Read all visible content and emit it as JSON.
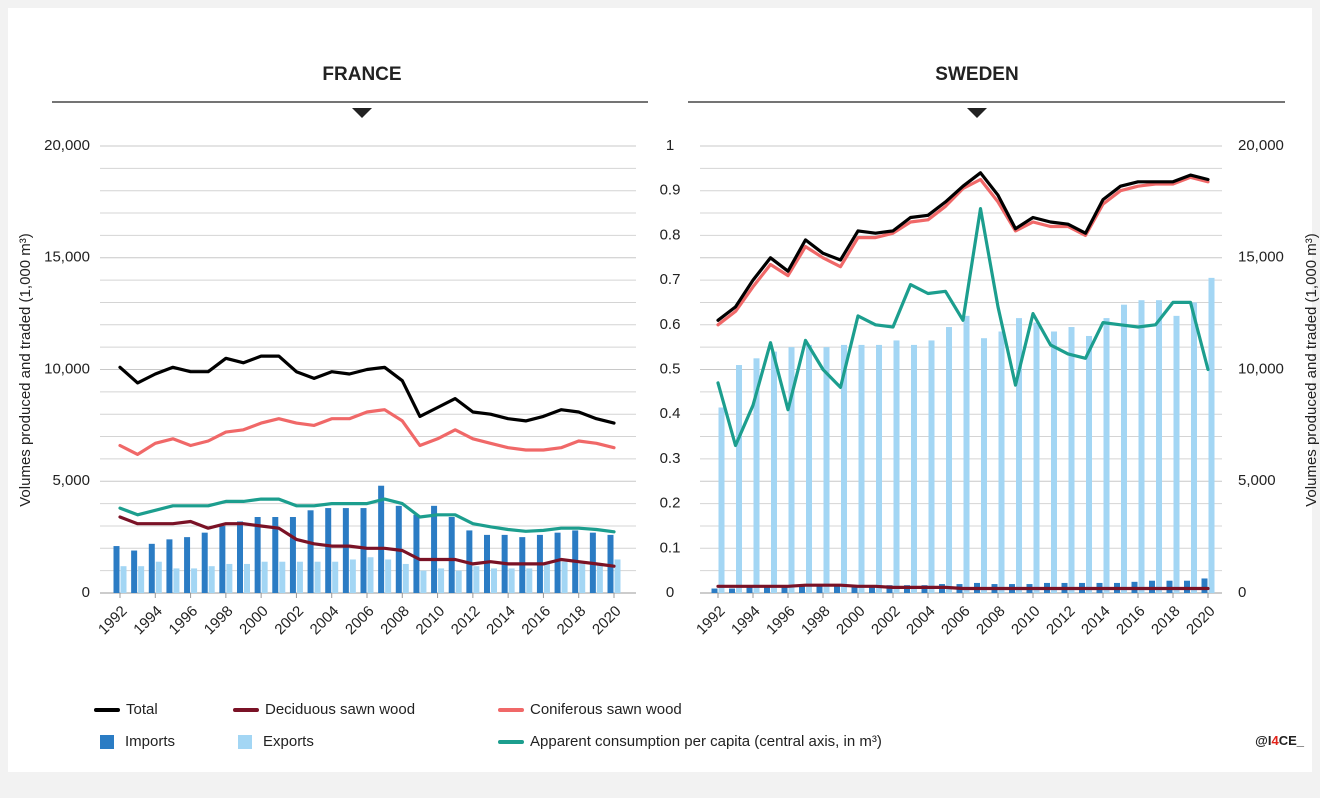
{
  "chart_data": [
    {
      "type": "bar_line",
      "title": "FRANCE",
      "ytitle": "Volumes produced and traded (1,000 m³)",
      "yaxis_side": "left",
      "xlim": [
        1992,
        2020
      ],
      "xticks": [
        1992,
        1994,
        1996,
        1998,
        2000,
        2002,
        2004,
        2006,
        2008,
        2010,
        2012,
        2014,
        2016,
        2018,
        2020
      ],
      "x": [
        1992,
        1993,
        1994,
        1995,
        1996,
        1997,
        1998,
        1999,
        2000,
        2001,
        2002,
        2003,
        2004,
        2005,
        2006,
        2007,
        2008,
        2009,
        2010,
        2011,
        2012,
        2013,
        2014,
        2015,
        2016,
        2017,
        2018,
        2019,
        2020
      ],
      "ylim": [
        0,
        20000
      ],
      "yticks": [
        0,
        {
          "value": 5000,
          "label": "5,000"
        },
        {
          "value": 10000,
          "label": "10,000"
        },
        {
          "value": 15000,
          "label": "15,000"
        },
        {
          "value": 20000,
          "label": "20,000"
        }
      ],
      "grid": true,
      "grid_step": 1000,
      "y2lim": [
        0,
        1
      ],
      "series": [
        {
          "name": "Total",
          "kind": "line",
          "color": "#000000",
          "axis": "y",
          "values": [
            10100,
            9400,
            9800,
            10100,
            9900,
            9900,
            10500,
            10300,
            10600,
            10600,
            9900,
            9600,
            9900,
            9800,
            10000,
            10100,
            9500,
            7900,
            8300,
            8700,
            8100,
            8000,
            7800,
            7700,
            7900,
            8200,
            8100,
            7800,
            7600
          ]
        },
        {
          "name": "Deciduous sawn wood",
          "kind": "line",
          "color": "#7a1226",
          "axis": "y",
          "values": [
            3400,
            3100,
            3100,
            3100,
            3200,
            2900,
            3100,
            3100,
            3000,
            2900,
            2400,
            2200,
            2100,
            2100,
            2000,
            2000,
            1900,
            1500,
            1500,
            1500,
            1300,
            1400,
            1300,
            1300,
            1300,
            1500,
            1400,
            1300,
            1200
          ]
        },
        {
          "name": "Coniferous sawn wood",
          "kind": "line",
          "color": "#f06868",
          "axis": "y",
          "values": [
            6600,
            6200,
            6700,
            6900,
            6600,
            6800,
            7200,
            7300,
            7600,
            7800,
            7600,
            7500,
            7800,
            7800,
            8100,
            8200,
            7700,
            6600,
            6900,
            7300,
            6900,
            6700,
            6500,
            6400,
            6400,
            6500,
            6800,
            6700,
            6500
          ]
        },
        {
          "name": "Imports",
          "kind": "bar",
          "color": "#2b7cc4",
          "axis": "y",
          "values": [
            2100,
            1900,
            2200,
            2400,
            2500,
            2700,
            3000,
            3200,
            3400,
            3400,
            3400,
            3700,
            3800,
            3800,
            3800,
            4800,
            3900,
            3500,
            3900,
            3400,
            2800,
            2600,
            2600,
            2500,
            2600,
            2700,
            2800,
            2700,
            2600
          ]
        },
        {
          "name": "Exports",
          "kind": "bar",
          "color": "#a3d6f4",
          "axis": "y",
          "values": [
            1200,
            1200,
            1400,
            1100,
            1100,
            1200,
            1300,
            1300,
            1400,
            1400,
            1400,
            1400,
            1400,
            1500,
            1600,
            1500,
            1300,
            1000,
            1100,
            1000,
            1200,
            1100,
            1100,
            1100,
            1300,
            1400,
            1400,
            1300,
            1500
          ]
        },
        {
          "name": "Apparent consumption per capita (central axis, in m³)",
          "kind": "line",
          "color": "#1c9e8e",
          "axis": "y2",
          "values": [
            0.19,
            0.175,
            0.185,
            0.195,
            0.195,
            0.195,
            0.205,
            0.205,
            0.21,
            0.21,
            0.195,
            0.195,
            0.2,
            0.2,
            0.2,
            0.21,
            0.2,
            0.17,
            0.175,
            0.175,
            0.155,
            0.148,
            0.142,
            0.138,
            0.14,
            0.145,
            0.145,
            0.142,
            0.137
          ]
        }
      ]
    },
    {
      "type": "bar_line",
      "title": "SWEDEN",
      "ytitle": "Volumes produced and traded (1,000 m³)",
      "yaxis_side": "right",
      "xlim": [
        1992,
        2020
      ],
      "xticks": [
        1992,
        1994,
        1996,
        1998,
        2000,
        2002,
        2004,
        2006,
        2008,
        2010,
        2012,
        2014,
        2016,
        2018,
        2020
      ],
      "x": [
        1992,
        1993,
        1994,
        1995,
        1996,
        1997,
        1998,
        1999,
        2000,
        2001,
        2002,
        2003,
        2004,
        2005,
        2006,
        2007,
        2008,
        2009,
        2010,
        2011,
        2012,
        2013,
        2014,
        2015,
        2016,
        2017,
        2018,
        2019,
        2020
      ],
      "ylim": [
        0,
        20000
      ],
      "yticks": [
        0,
        {
          "value": 5000,
          "label": "5,000"
        },
        {
          "value": 10000,
          "label": "10,000"
        },
        {
          "value": 15000,
          "label": "15,000"
        },
        {
          "value": 20000,
          "label": "20,000"
        }
      ],
      "grid": true,
      "grid_step": 1000,
      "y2lim": [
        0,
        1
      ],
      "y2ticks": [
        0,
        0.1,
        0.2,
        0.3,
        0.4,
        0.5,
        0.6,
        0.7,
        0.8,
        0.9,
        1
      ],
      "series": [
        {
          "name": "Total",
          "kind": "line",
          "color": "#000000",
          "axis": "y",
          "values": [
            12200,
            12800,
            14000,
            15000,
            14400,
            15800,
            15200,
            14900,
            16200,
            16100,
            16200,
            16800,
            16900,
            17500,
            18200,
            18800,
            17800,
            16300,
            16800,
            16600,
            16500,
            16100,
            17600,
            18200,
            18400,
            18400,
            18400,
            18700,
            18500
          ]
        },
        {
          "name": "Deciduous sawn wood",
          "kind": "line",
          "color": "#7a1226",
          "axis": "y",
          "values": [
            300,
            300,
            300,
            300,
            300,
            350,
            350,
            350,
            300,
            300,
            250,
            250,
            250,
            250,
            200,
            200,
            200,
            200,
            200,
            200,
            200,
            200,
            200,
            200,
            200,
            200,
            200,
            200,
            200
          ]
        },
        {
          "name": "Coniferous sawn wood",
          "kind": "line",
          "color": "#f06868",
          "axis": "y",
          "values": [
            12000,
            12600,
            13700,
            14700,
            14200,
            15500,
            15000,
            14600,
            15900,
            15900,
            16100,
            16600,
            16700,
            17300,
            18100,
            18500,
            17500,
            16200,
            16600,
            16400,
            16400,
            16000,
            17400,
            18000,
            18200,
            18300,
            18300,
            18600,
            18400
          ]
        },
        {
          "name": "Imports",
          "kind": "bar",
          "color": "#2b7cc4",
          "axis": "y",
          "values": [
            200,
            200,
            250,
            250,
            250,
            300,
            300,
            300,
            300,
            300,
            350,
            350,
            350,
            400,
            400,
            450,
            400,
            400,
            400,
            450,
            450,
            450,
            450,
            450,
            500,
            550,
            550,
            550,
            650
          ]
        },
        {
          "name": "Exports",
          "kind": "bar",
          "color": "#a3d6f4",
          "axis": "y",
          "values": [
            8300,
            10200,
            10500,
            10800,
            11000,
            11100,
            11000,
            11100,
            11100,
            11100,
            11300,
            11100,
            11300,
            11900,
            12400,
            11400,
            11700,
            12300,
            12100,
            11700,
            11900,
            11500,
            12300,
            12900,
            13100,
            13100,
            12400,
            13000,
            14100
          ]
        },
        {
          "name": "Apparent consumption per capita (central axis, in m³)",
          "kind": "line",
          "color": "#1c9e8e",
          "axis": "y2",
          "values": [
            0.47,
            0.33,
            0.42,
            0.56,
            0.41,
            0.565,
            0.5,
            0.46,
            0.62,
            0.6,
            0.595,
            0.69,
            0.67,
            0.675,
            0.61,
            0.86,
            0.64,
            0.465,
            0.625,
            0.555,
            0.535,
            0.525,
            0.605,
            0.6,
            0.595,
            0.6,
            0.65,
            0.65,
            0.5
          ]
        }
      ]
    }
  ],
  "credit": [
    "@I",
    "4",
    "CE_"
  ]
}
